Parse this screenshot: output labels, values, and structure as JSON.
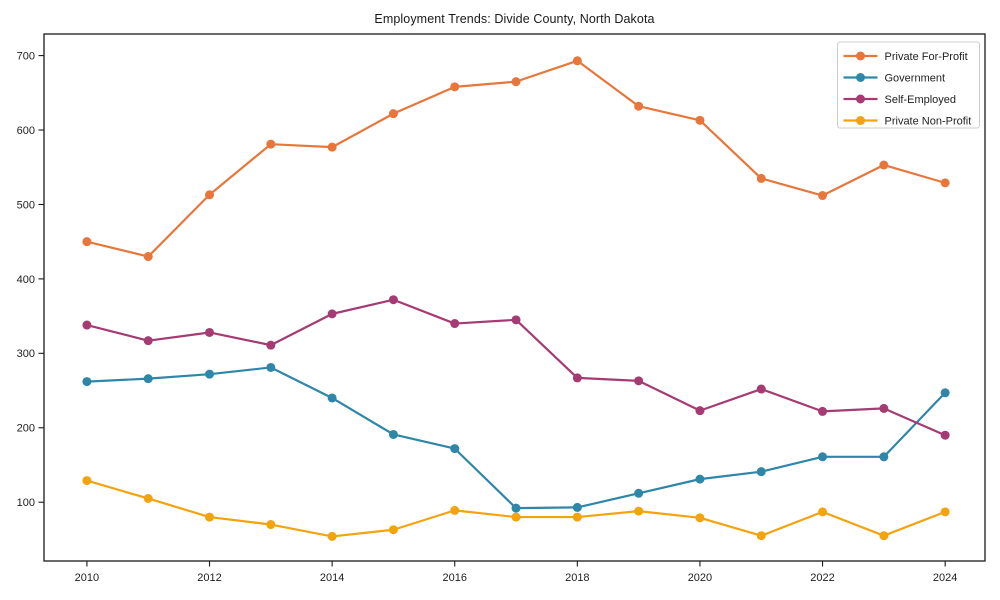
{
  "figure": {
    "background": "#ffffff",
    "axis_color": "#1a1a1a",
    "text_color": "#1f1f1f",
    "legend_border_color": "#cccccc"
  },
  "chart_data": {
    "type": "line",
    "title": "Employment Trends: Divide County, North Dakota",
    "xlabel": "",
    "ylabel": "",
    "x": [
      2010,
      2011,
      2012,
      2013,
      2014,
      2015,
      2016,
      2017,
      2018,
      2019,
      2020,
      2021,
      2022,
      2023,
      2024
    ],
    "series": [
      {
        "name": "Private For-Profit",
        "color": "#E8763B",
        "values": [
          450,
          430,
          513,
          581,
          577,
          622,
          658,
          665,
          693,
          632,
          613,
          535,
          512,
          553,
          529
        ]
      },
      {
        "name": "Government",
        "color": "#2E86A8",
        "values": [
          262,
          266,
          272,
          281,
          240,
          191,
          172,
          92,
          93,
          112,
          131,
          141,
          161,
          161,
          247
        ]
      },
      {
        "name": "Self-Employed",
        "color": "#A53B72",
        "values": [
          338,
          317,
          328,
          311,
          353,
          372,
          340,
          345,
          267,
          263,
          223,
          252,
          222,
          226,
          190
        ]
      },
      {
        "name": "Private Non-Profit",
        "color": "#F2A30D",
        "values": [
          129,
          105,
          80,
          70,
          54,
          63,
          89,
          80,
          80,
          88,
          79,
          55,
          87,
          55,
          87
        ]
      }
    ],
    "xticks": [
      2010,
      2012,
      2014,
      2016,
      2018,
      2020,
      2022,
      2024
    ],
    "yticks": [
      100,
      200,
      300,
      400,
      500,
      600,
      700
    ],
    "xlim": [
      2009.3,
      2024.65
    ],
    "ylim": [
      21,
      729
    ],
    "grid": false,
    "legend_position": "upper right"
  }
}
